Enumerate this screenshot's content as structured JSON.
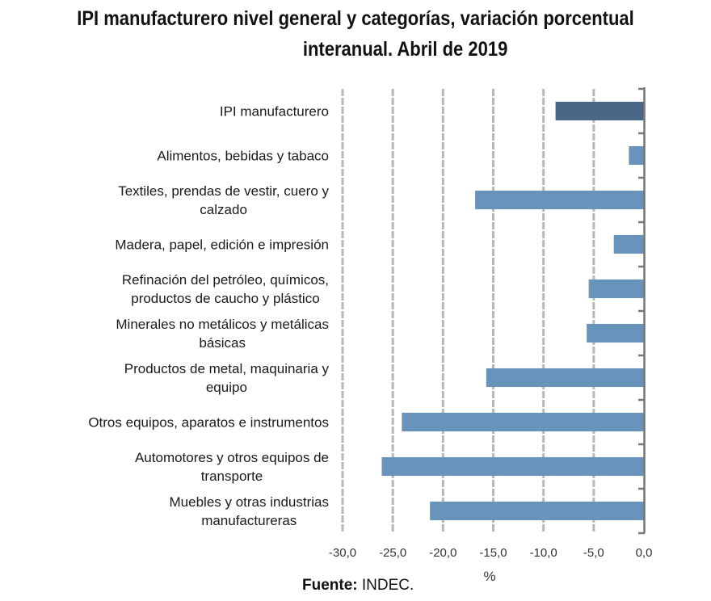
{
  "title_line1": "IPI manufacturero nivel general y categorías, variación porcentual",
  "title_line2": "interanual. Abril de 2019",
  "source_label": "Fuente:",
  "source_value": "INDEC.",
  "colors": {
    "highlight_bar": "#4a6787",
    "bar": "#6893ba",
    "grid": "#b8b8b8",
    "axis": "#777777"
  },
  "chart_data": {
    "type": "bar",
    "orientation": "horizontal",
    "title": "IPI manufacturero nivel general y categorías, variación porcentual interanual. Abril de 2019",
    "xlabel": "%",
    "ylabel": "",
    "xlim": [
      -30,
      0
    ],
    "xticks": [
      -30,
      -25,
      -20,
      -15,
      -10,
      -5,
      0
    ],
    "xtick_labels": [
      "-30,0",
      "-25,0",
      "-20,0",
      "-15,0",
      "-10,0",
      "-5,0",
      "0,0"
    ],
    "grid": "vertical dashed",
    "legend": "none",
    "categories": [
      [
        "IPI manufacturero"
      ],
      [
        "Alimentos, bebidas y tabaco"
      ],
      [
        "Textiles, prendas de vestir, cuero y",
        "calzado"
      ],
      [
        "Madera, papel, edición e impresión"
      ],
      [
        "Refinación del petróleo, químicos,",
        "productos de caucho y plástico"
      ],
      [
        "Minerales no metálicos y metálicas",
        "básicas"
      ],
      [
        "Productos de metal, maquinaria y",
        "equipo"
      ],
      [
        "Otros equipos, aparatos e instrumentos"
      ],
      [
        "Automotores y otros equipos de",
        "transporte"
      ],
      [
        "Muebles y otras industrias",
        "manufactureras"
      ]
    ],
    "values": [
      -8.8,
      -1.5,
      -16.8,
      -3.0,
      -5.5,
      -5.7,
      -15.7,
      -24.1,
      -26.1,
      -21.3
    ],
    "highlight_index": 0
  }
}
